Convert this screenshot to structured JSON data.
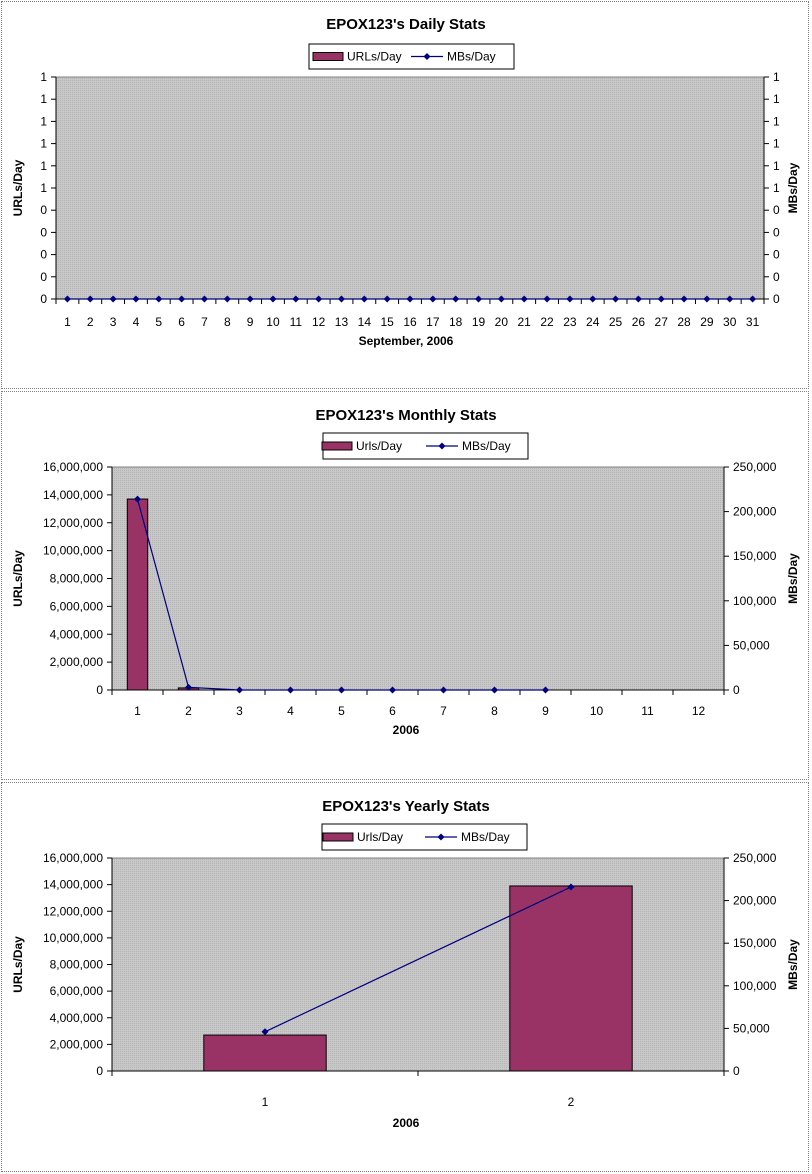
{
  "chart_data": [
    {
      "type": "bar",
      "title": "EPOX123's Daily Stats",
      "xlabel": "September, 2006",
      "ylabel": "URLs/Day",
      "y2label": "MBs/Day",
      "legend_position": "top-center",
      "grid": false,
      "categories": [
        "1",
        "2",
        "3",
        "4",
        "5",
        "6",
        "7",
        "8",
        "9",
        "10",
        "11",
        "12",
        "13",
        "14",
        "15",
        "16",
        "17",
        "18",
        "19",
        "20",
        "21",
        "22",
        "23",
        "24",
        "25",
        "26",
        "27",
        "28",
        "29",
        "30",
        "31"
      ],
      "y_ticks": [
        "0",
        "0",
        "0",
        "0",
        "0",
        "1",
        "1",
        "1",
        "1",
        "1",
        "1"
      ],
      "y2_ticks": [
        "0",
        "0",
        "0",
        "0",
        "0",
        "1",
        "1",
        "1",
        "1",
        "1",
        "1"
      ],
      "ylim": [
        0,
        1
      ],
      "y2lim": [
        0,
        1
      ],
      "series": [
        {
          "name": "URLs/Day",
          "type": "bar",
          "axis": "left",
          "color": "#993366",
          "values": [
            0,
            0,
            0,
            0,
            0,
            0,
            0,
            0,
            0,
            0,
            0,
            0,
            0,
            0,
            0,
            0,
            0,
            0,
            0,
            0,
            0,
            0,
            0,
            0,
            0,
            0,
            0,
            0,
            0,
            0,
            0
          ]
        },
        {
          "name": "MBs/Day",
          "type": "line",
          "axis": "right",
          "color": "#000080",
          "values": [
            0,
            0,
            0,
            0,
            0,
            0,
            0,
            0,
            0,
            0,
            0,
            0,
            0,
            0,
            0,
            0,
            0,
            0,
            0,
            0,
            0,
            0,
            0,
            0,
            0,
            0,
            0,
            0,
            0,
            0,
            0
          ]
        }
      ]
    },
    {
      "type": "bar",
      "title": "EPOX123's Monthly Stats",
      "xlabel": "2006",
      "ylabel": "URLs/Day",
      "y2label": "MBs/Day",
      "legend_position": "top-center",
      "grid": false,
      "categories": [
        "1",
        "2",
        "3",
        "4",
        "5",
        "6",
        "7",
        "8",
        "9",
        "10",
        "11",
        "12"
      ],
      "y_ticks": [
        "0",
        "2,000,000",
        "4,000,000",
        "6,000,000",
        "8,000,000",
        "10,000,000",
        "12,000,000",
        "14,000,000",
        "16,000,000"
      ],
      "y2_ticks": [
        "0",
        "50,000",
        "100,000",
        "150,000",
        "200,000",
        "250,000"
      ],
      "ylim": [
        0,
        16000000
      ],
      "y2lim": [
        0,
        250000
      ],
      "series": [
        {
          "name": "Urls/Day",
          "type": "bar",
          "axis": "left",
          "color": "#993366",
          "values": [
            13700000,
            150000,
            0,
            0,
            0,
            0,
            0,
            0,
            0,
            null,
            null,
            null
          ]
        },
        {
          "name": "MBs/Day",
          "type": "line",
          "axis": "right",
          "color": "#000080",
          "values": [
            214000,
            3000,
            0,
            0,
            0,
            0,
            0,
            0,
            0,
            null,
            null,
            null
          ]
        }
      ]
    },
    {
      "type": "bar",
      "title": "EPOX123's Yearly Stats",
      "xlabel": "2006",
      "ylabel": "URLs/Day",
      "y2label": "MBs/Day",
      "legend_position": "top-center",
      "grid": false,
      "categories": [
        "1",
        "2"
      ],
      "y_ticks": [
        "0",
        "2,000,000",
        "4,000,000",
        "6,000,000",
        "8,000,000",
        "10,000,000",
        "12,000,000",
        "14,000,000",
        "16,000,000"
      ],
      "y2_ticks": [
        "0",
        "50,000",
        "100,000",
        "150,000",
        "200,000",
        "250,000"
      ],
      "ylim": [
        0,
        16000000
      ],
      "y2lim": [
        0,
        250000
      ],
      "series": [
        {
          "name": "Urls/Day",
          "type": "bar",
          "axis": "left",
          "color": "#993366",
          "values": [
            2700000,
            13900000
          ]
        },
        {
          "name": "MBs/Day",
          "type": "line",
          "axis": "right",
          "color": "#000080",
          "values": [
            46000,
            216000
          ]
        }
      ]
    }
  ]
}
